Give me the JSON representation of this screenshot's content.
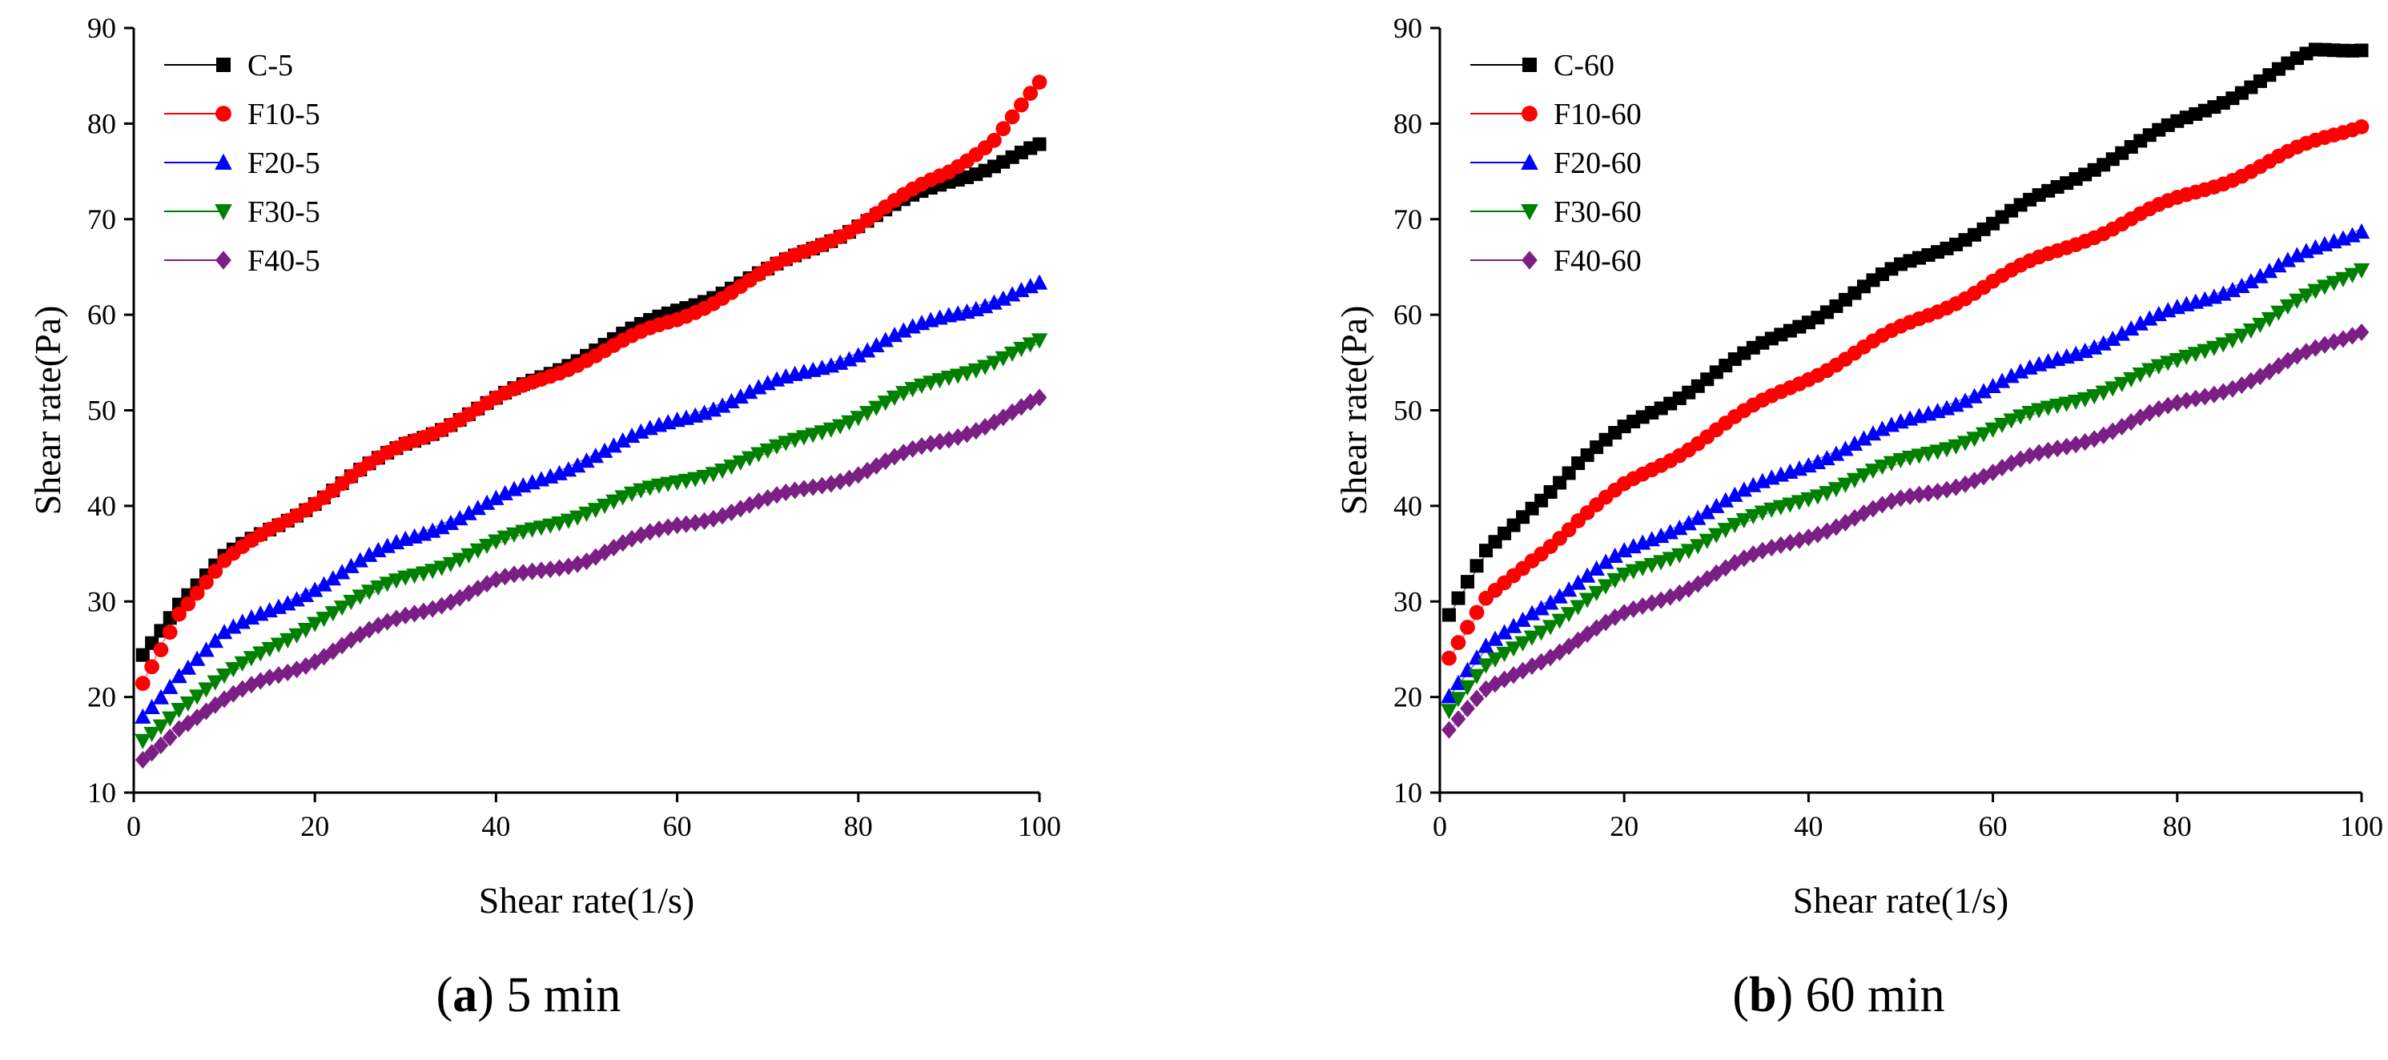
{
  "chart_data": [
    {
      "type": "scatter",
      "panel": "a",
      "caption_letter": "a",
      "caption_text": "5 min",
      "xlabel": "Shear rate(1/s)",
      "ylabel": "Shear rate(Pa)",
      "xlim": [
        0,
        100
      ],
      "ylim": [
        10,
        90
      ],
      "xticks": [
        0,
        20,
        40,
        60,
        80,
        100
      ],
      "yticks": [
        10,
        20,
        30,
        40,
        50,
        60,
        70,
        80,
        90
      ],
      "legend_position": "top-left",
      "series": [
        {
          "name": "C-5",
          "color": "#000000",
          "marker": "square",
          "points": [
            [
              1,
              24.5
            ],
            [
              5,
              30
            ],
            [
              10,
              34.5
            ],
            [
              15,
              37.5
            ],
            [
              20,
              40.5
            ],
            [
              30,
              46.5
            ],
            [
              40,
              51
            ],
            [
              50,
              56
            ],
            [
              60,
              60.5
            ],
            [
              70,
              64.5
            ],
            [
              80,
              69.5
            ],
            [
              90,
              74
            ],
            [
              100,
              77.5
            ]
          ]
        },
        {
          "name": "F10-5",
          "color": "#ff0000",
          "marker": "circle",
          "points": [
            [
              1,
              21.5
            ],
            [
              5,
              29
            ],
            [
              10,
              34
            ],
            [
              15,
              37.5
            ],
            [
              20,
              40.5
            ],
            [
              30,
              46.5
            ],
            [
              40,
              51
            ],
            [
              50,
              55.5
            ],
            [
              60,
              59.5
            ],
            [
              70,
              64.5
            ],
            [
              80,
              69.5
            ],
            [
              90,
              75
            ],
            [
              95,
              78.5
            ],
            [
              100,
              84
            ]
          ]
        },
        {
          "name": "F20-5",
          "color": "#0000ff",
          "marker": "triangle-up",
          "points": [
            [
              1,
              18
            ],
            [
              5,
              22.5
            ],
            [
              10,
              26.5
            ],
            [
              15,
              29
            ],
            [
              20,
              31.5
            ],
            [
              30,
              36.5
            ],
            [
              40,
              40.5
            ],
            [
              50,
              45
            ],
            [
              60,
              49
            ],
            [
              70,
              52.5
            ],
            [
              80,
              56
            ],
            [
              90,
              60
            ],
            [
              100,
              63
            ]
          ]
        },
        {
          "name": "F30-5",
          "color": "#008000",
          "marker": "triangle-down",
          "points": [
            [
              1,
              15.5
            ],
            [
              5,
              19
            ],
            [
              10,
              22
            ],
            [
              15,
              25
            ],
            [
              20,
              28
            ],
            [
              30,
              32.5
            ],
            [
              40,
              36
            ],
            [
              50,
              39.5
            ],
            [
              60,
              42.5
            ],
            [
              70,
              45.5
            ],
            [
              80,
              49.5
            ],
            [
              90,
              53.5
            ],
            [
              100,
              57
            ]
          ]
        },
        {
          "name": "F40-5",
          "color": "#7b1f86",
          "marker": "diamond",
          "points": [
            [
              1,
              13.5
            ],
            [
              5,
              17
            ],
            [
              10,
              19.5
            ],
            [
              15,
              22
            ],
            [
              20,
              24
            ],
            [
              30,
              28.5
            ],
            [
              40,
              32
            ],
            [
              50,
              34.5
            ],
            [
              60,
              38
            ],
            [
              70,
              40.5
            ],
            [
              80,
              43.5
            ],
            [
              90,
              47
            ],
            [
              100,
              51
            ]
          ]
        }
      ]
    },
    {
      "type": "scatter",
      "panel": "b",
      "caption_letter": "b",
      "caption_text": "60 min",
      "xlabel": "Shear rate(1/s)",
      "ylabel": "Shear rate(Pa)",
      "xlim": [
        0,
        100
      ],
      "ylim": [
        10,
        90
      ],
      "xticks": [
        0,
        20,
        40,
        60,
        80,
        100
      ],
      "yticks": [
        10,
        20,
        30,
        40,
        50,
        60,
        70,
        80,
        90
      ],
      "legend_position": "top-left",
      "series": [
        {
          "name": "C-60",
          "color": "#000000",
          "marker": "square",
          "points": [
            [
              1,
              28.5
            ],
            [
              5,
              35
            ],
            [
              10,
              40
            ],
            [
              15,
              44.5
            ],
            [
              20,
              48
            ],
            [
              30,
              54
            ],
            [
              40,
              59.5
            ],
            [
              50,
              65
            ],
            [
              60,
              69.5
            ],
            [
              70,
              75
            ],
            [
              80,
              80
            ],
            [
              90,
              85
            ],
            [
              95,
              87.5
            ],
            [
              100,
              88
            ]
          ]
        },
        {
          "name": "F10-60",
          "color": "#ff0000",
          "marker": "circle",
          "points": [
            [
              1,
              24
            ],
            [
              5,
              30
            ],
            [
              10,
              34.5
            ],
            [
              15,
              38.5
            ],
            [
              20,
              42
            ],
            [
              30,
              48
            ],
            [
              40,
              53.5
            ],
            [
              50,
              58.5
            ],
            [
              60,
              63.5
            ],
            [
              70,
              68
            ],
            [
              80,
              72
            ],
            [
              90,
              76
            ],
            [
              100,
              80
            ]
          ]
        },
        {
          "name": "F20-60",
          "color": "#0000ff",
          "marker": "triangle-up",
          "points": [
            [
              1,
              20
            ],
            [
              5,
              25
            ],
            [
              10,
              29
            ],
            [
              15,
              32
            ],
            [
              20,
              35
            ],
            [
              30,
              40
            ],
            [
              40,
              44.5
            ],
            [
              50,
              48.5
            ],
            [
              60,
              52.5
            ],
            [
              70,
              56.5
            ],
            [
              80,
              60.5
            ],
            [
              90,
              64.5
            ],
            [
              100,
              69
            ]
          ]
        },
        {
          "name": "F30-60",
          "color": "#008000",
          "marker": "triangle-down",
          "points": [
            [
              1,
              18.5
            ],
            [
              5,
              23
            ],
            [
              10,
              26.5
            ],
            [
              15,
              29.5
            ],
            [
              20,
              32.5
            ],
            [
              30,
              37
            ],
            [
              40,
              41
            ],
            [
              50,
              44.5
            ],
            [
              60,
              48
            ],
            [
              70,
              51.5
            ],
            [
              80,
              55
            ],
            [
              90,
              59.5
            ],
            [
              100,
              65
            ]
          ]
        },
        {
          "name": "F40-60",
          "color": "#7b1f86",
          "marker": "diamond",
          "points": [
            [
              1,
              16.5
            ],
            [
              5,
              20.5
            ],
            [
              10,
              23.5
            ],
            [
              15,
              26
            ],
            [
              20,
              28.5
            ],
            [
              30,
              33
            ],
            [
              40,
              37
            ],
            [
              50,
              40.5
            ],
            [
              60,
              43.5
            ],
            [
              70,
              47
            ],
            [
              80,
              50.5
            ],
            [
              90,
              54
            ],
            [
              100,
              58.5
            ]
          ]
        }
      ]
    }
  ]
}
